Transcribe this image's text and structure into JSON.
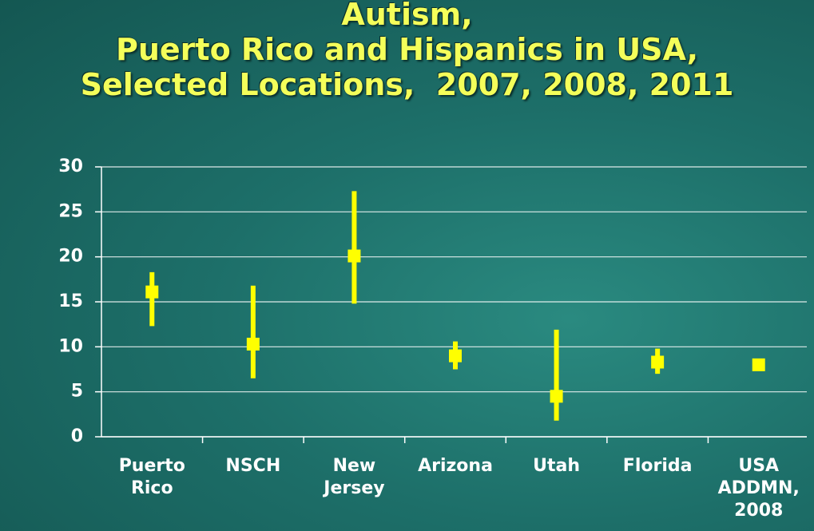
{
  "chart_data": {
    "type": "errorbar",
    "title": [
      "Autism,",
      "Puerto Rico and Hispanics in USA,",
      "Selected Locations,  2007, 2008, 2011"
    ],
    "categories": [
      "Puerto Rico",
      "NSCH",
      "New Jersey",
      "Arizona",
      "Utah",
      "Florida",
      "USA ADDMN, 2008"
    ],
    "values": [
      16.1,
      10.3,
      20.1,
      9.0,
      4.5,
      8.3,
      8.0
    ],
    "lower": [
      12.3,
      6.5,
      14.8,
      7.5,
      1.8,
      7.0,
      null
    ],
    "upper": [
      18.3,
      16.8,
      27.3,
      10.6,
      11.9,
      9.8,
      null
    ],
    "color": "#ffff00",
    "ylim": [
      0,
      30
    ],
    "yticks": [
      0,
      5,
      10,
      15,
      20,
      25,
      30
    ],
    "grid": true
  }
}
